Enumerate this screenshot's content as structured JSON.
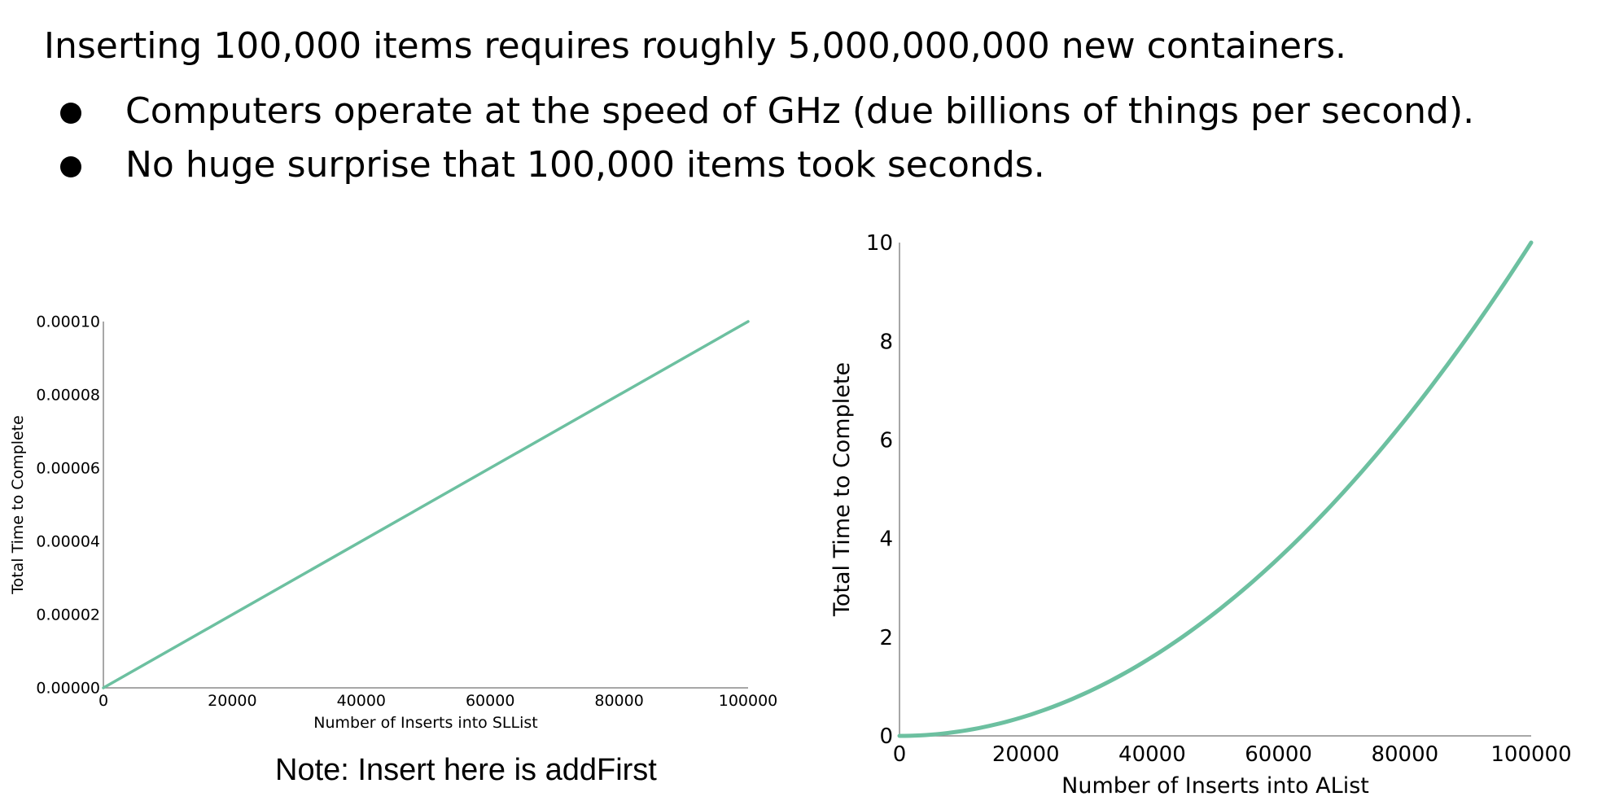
{
  "slide": {
    "headline": "Inserting 100,000 items requires roughly 5,000,000,000 new containers.",
    "bullets": [
      "Computers operate at the speed of GHz (due billions of things per second).",
      "No huge surprise that 100,000 items took seconds."
    ],
    "note": "Note: Insert here is addFirst"
  },
  "chart_data": [
    {
      "type": "line",
      "title": "",
      "xlabel": "Number of Inserts into SLList",
      "ylabel": "Total Time to Complete",
      "xlim": [
        0,
        100000
      ],
      "ylim": [
        0,
        0.0001
      ],
      "xticks": [
        "0",
        "20000",
        "40000",
        "60000",
        "80000",
        "100000"
      ],
      "yticks": [
        "0.00000",
        "0.00002",
        "0.00004",
        "0.00006",
        "0.00008",
        "0.00010"
      ],
      "series": [
        {
          "x": [
            0,
            100000
          ],
          "y": [
            0,
            0.0001
          ]
        }
      ],
      "line_color": "#6cc0a0",
      "grid": false
    },
    {
      "type": "line",
      "title": "",
      "xlabel": "Number of Inserts into AList",
      "ylabel": "Total Time to Complete",
      "xlim": [
        0,
        100000
      ],
      "ylim": [
        0,
        10
      ],
      "xticks": [
        "0",
        "20000",
        "40000",
        "60000",
        "80000",
        "100000"
      ],
      "yticks": [
        "0",
        "2",
        "4",
        "6",
        "8",
        "10"
      ],
      "series": [
        {
          "x": [
            0,
            10000,
            20000,
            30000,
            40000,
            50000,
            60000,
            70000,
            80000,
            90000,
            100000
          ],
          "y": [
            0,
            0.1,
            0.4,
            0.9,
            1.6,
            2.5,
            3.6,
            4.9,
            6.4,
            8.1,
            10
          ]
        }
      ],
      "line_color": "#6cc0a0",
      "grid": false
    }
  ]
}
